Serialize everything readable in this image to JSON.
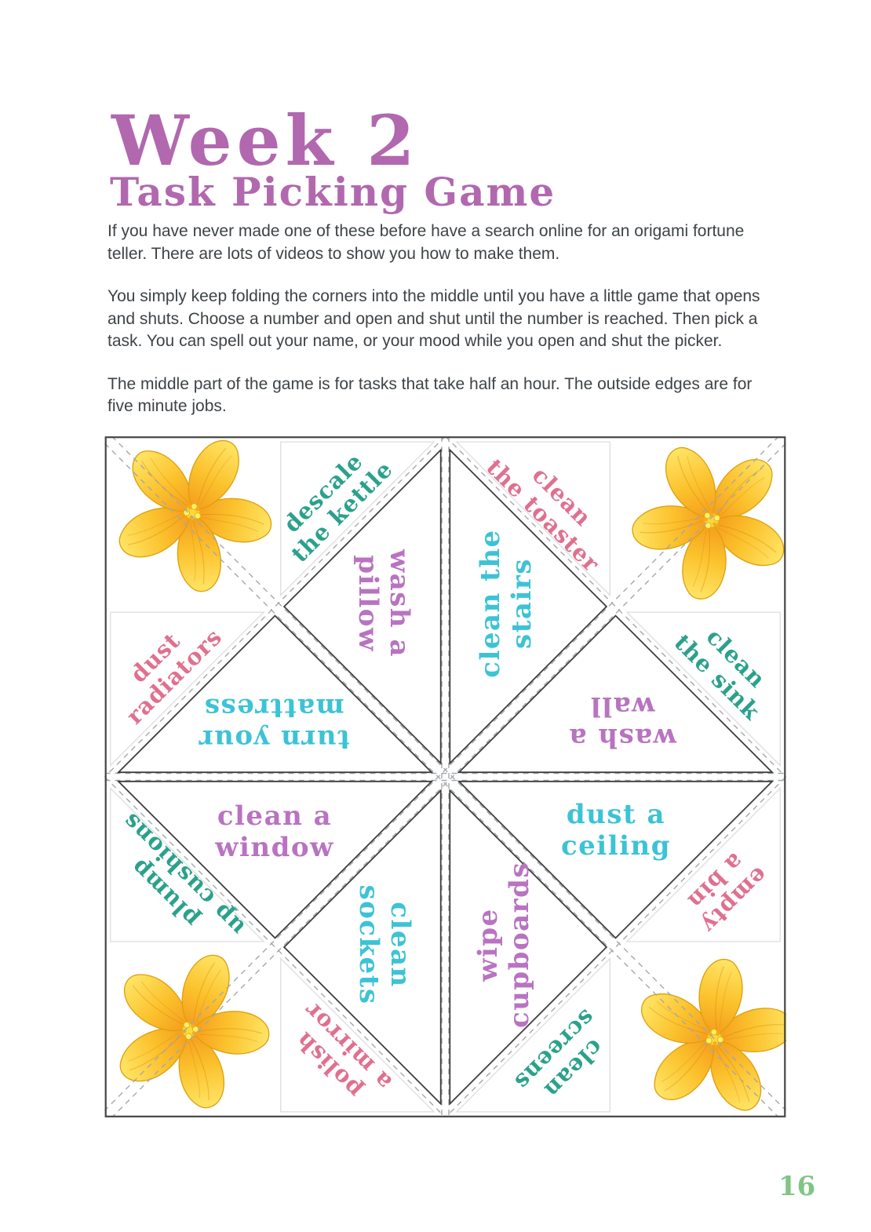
{
  "page": {
    "title": "Week 2",
    "subtitle": "Task Picking Game",
    "paragraphs": [
      "If you have never made one of these before have a search online for an origami fortune teller. There are lots of videos to show you how to make them.",
      "You simply keep folding the corners into the middle until you have a little game that opens and shuts. Choose a number and open and shut until the number is reached. Then pick a task. You can spell out your name, or your mood while you open and shut the picker.",
      "The middle part of the game is for tasks that take half an hour. The outside edges are for five minute jobs.",
      "",
      ""
    ],
    "page_number": "16"
  },
  "colors": {
    "title_purple": "#b168af",
    "body_text": "#3e4347",
    "cyan": "#3cc3d5",
    "teal": "#2ba18c",
    "pink": "#e0708f",
    "purple": "#b873c1",
    "page_number_green": "#80c584"
  },
  "fortune_teller": {
    "description": "Origami fortune teller template: middle triangles are half-hour tasks, outside edges are five minute jobs",
    "center_tasks": [
      {
        "lines": [
          "wash a",
          "pillow"
        ],
        "color": "purple",
        "pos": "inner-top-left"
      },
      {
        "lines": [
          "clean the",
          "stairs"
        ],
        "color": "cyan",
        "pos": "inner-top-right"
      },
      {
        "lines": [
          "turn your",
          "mattress"
        ],
        "color": "cyan",
        "pos": "inner-left-top"
      },
      {
        "lines": [
          "wash a",
          "wall"
        ],
        "color": "purple",
        "pos": "inner-right-top"
      },
      {
        "lines": [
          "clean a",
          "window"
        ],
        "color": "purple",
        "pos": "inner-left-bottom"
      },
      {
        "lines": [
          "dust a",
          "ceiling"
        ],
        "color": "cyan",
        "pos": "inner-right-bottom"
      },
      {
        "lines": [
          "clean",
          "sockets"
        ],
        "color": "cyan",
        "pos": "inner-bottom-left"
      },
      {
        "lines": [
          "wipe",
          "cupboards"
        ],
        "color": "purple",
        "pos": "inner-bottom-right"
      }
    ],
    "edge_tasks": [
      {
        "lines": [
          "descale",
          "the kettle"
        ],
        "color": "teal",
        "pos": "edge-top-left"
      },
      {
        "lines": [
          "clean",
          "the toaster"
        ],
        "color": "pink",
        "pos": "edge-top-right"
      },
      {
        "lines": [
          "dust",
          "radiators"
        ],
        "color": "pink",
        "pos": "edge-left-top"
      },
      {
        "lines": [
          "clean",
          "the sink"
        ],
        "color": "teal",
        "pos": "edge-right-top"
      },
      {
        "lines": [
          "plump",
          "up cushions"
        ],
        "color": "teal",
        "pos": "edge-left-bottom"
      },
      {
        "lines": [
          "empty",
          "a bin"
        ],
        "color": "pink",
        "pos": "edge-right-bottom"
      },
      {
        "lines": [
          "polish",
          "a mirror"
        ],
        "color": "pink",
        "pos": "edge-bottom-left"
      },
      {
        "lines": [
          "clean",
          "screens"
        ],
        "color": "teal",
        "pos": "edge-bottom-right"
      }
    ],
    "flower_corners": [
      "top-left",
      "top-right",
      "bottom-left",
      "bottom-right"
    ]
  }
}
